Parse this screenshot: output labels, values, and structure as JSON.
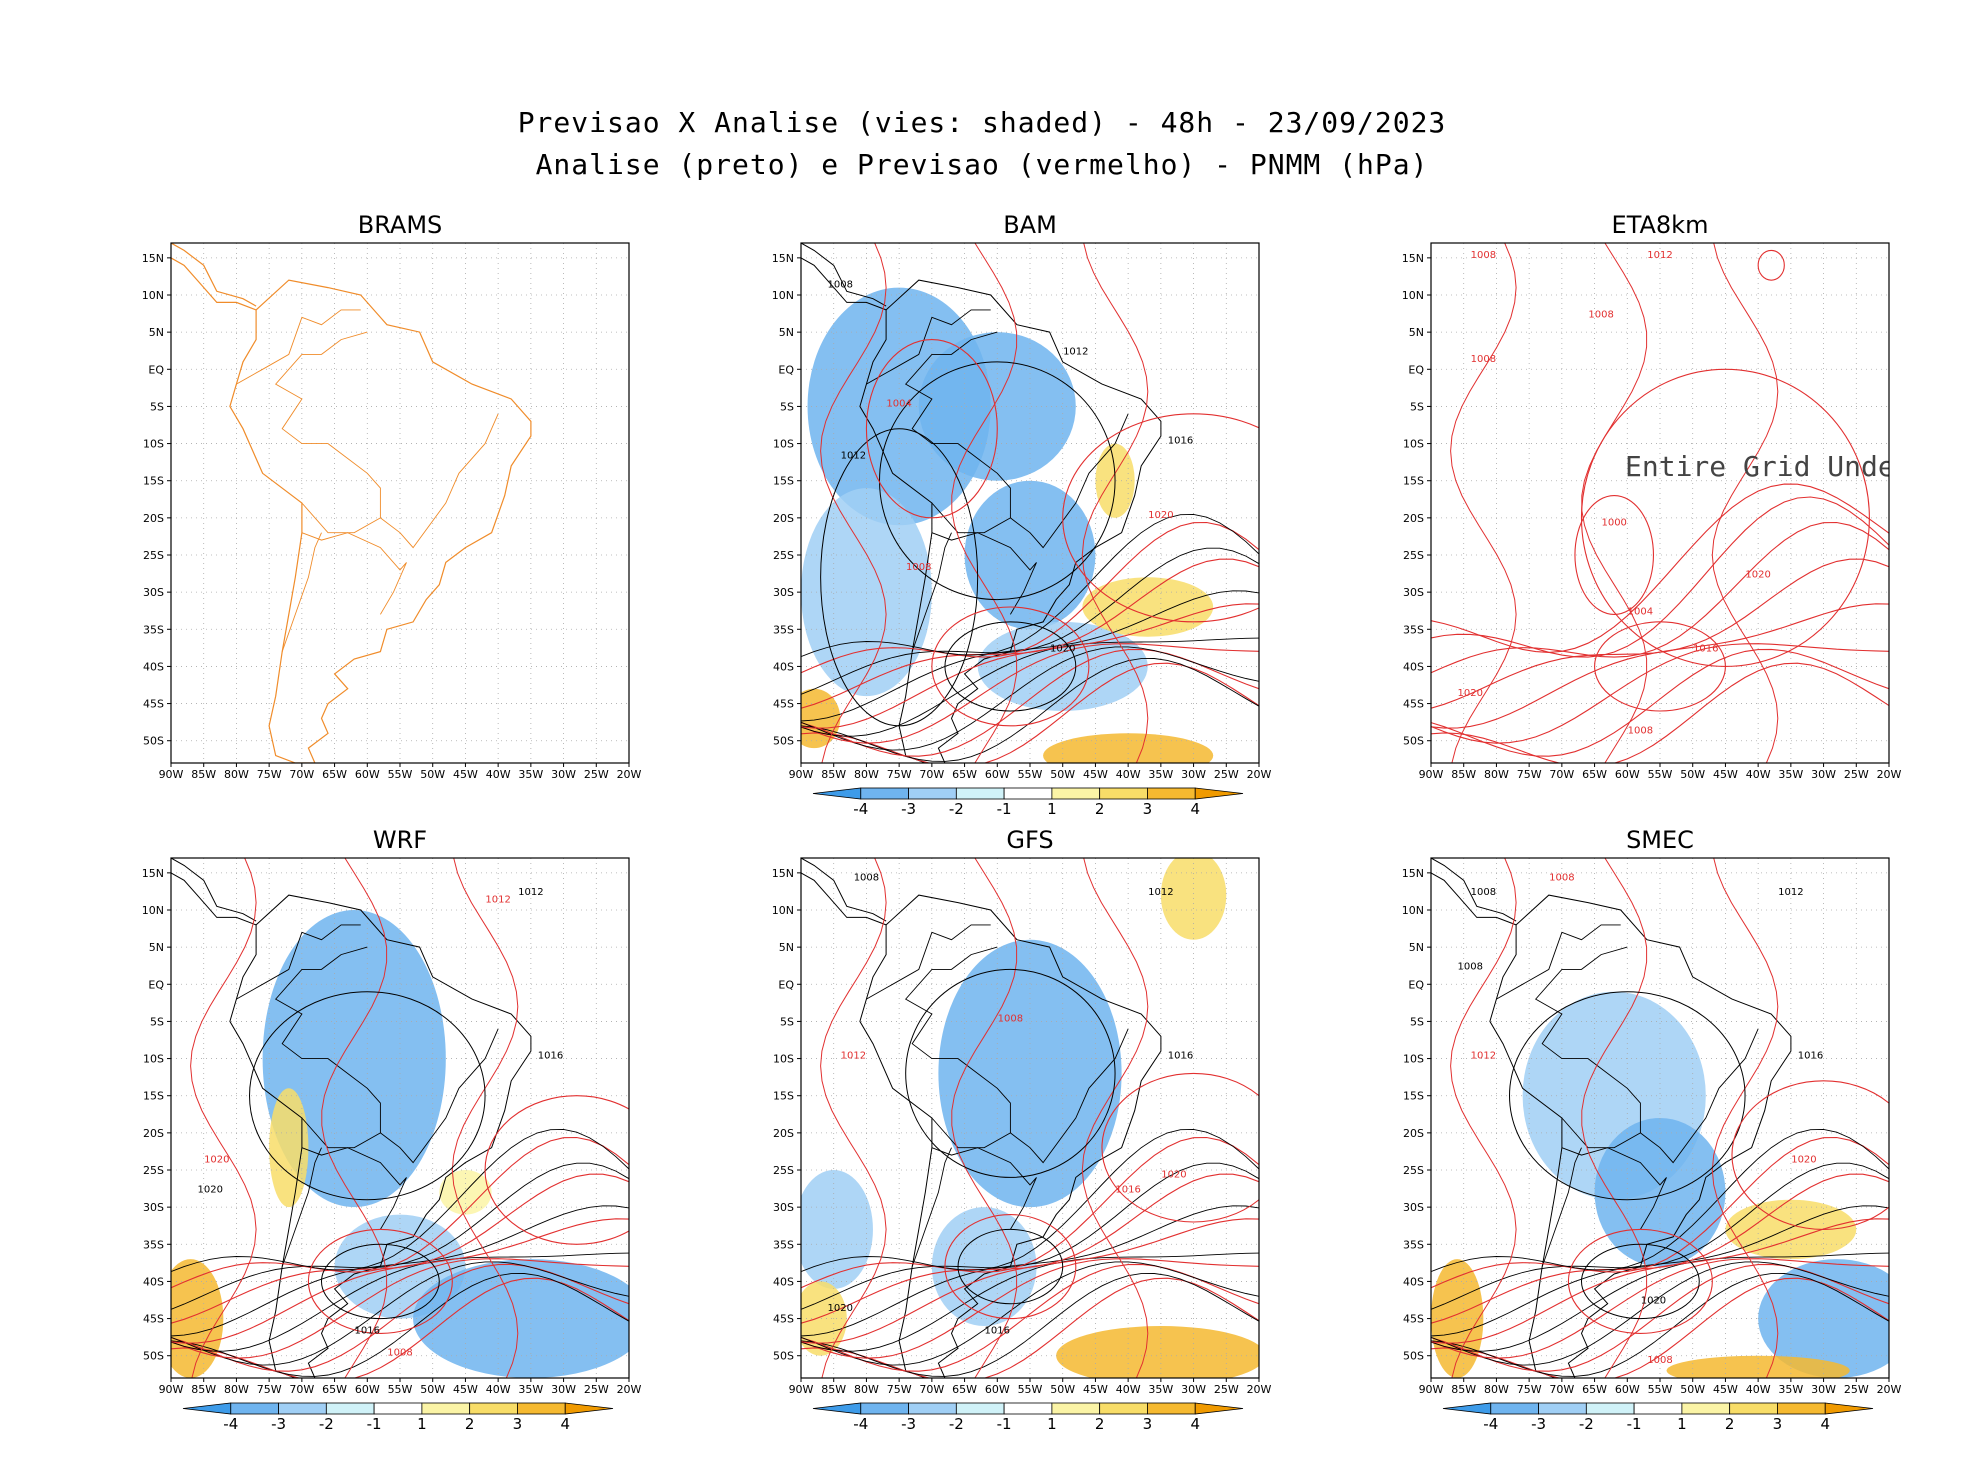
{
  "header": {
    "title_line1": "Previsao X Analise (vies: shaded) - 48h - 23/09/2023",
    "title_line2": "Analise (preto) e Previsao (vermelho) - PNMM (hPa)"
  },
  "axes": {
    "lon_labels": [
      "90W",
      "85W",
      "80W",
      "75W",
      "70W",
      "65W",
      "60W",
      "55W",
      "50W",
      "45W",
      "40W",
      "35W",
      "30W",
      "25W",
      "20W"
    ],
    "lat_labels": [
      "15N",
      "10N",
      "5N",
      "EQ",
      "5S",
      "10S",
      "15S",
      "20S",
      "25S",
      "30S",
      "35S",
      "40S",
      "45S",
      "50S"
    ],
    "lon_range": [
      -90,
      -20
    ],
    "lat_range": [
      -53,
      17
    ]
  },
  "colorbar": {
    "labels": [
      "-4",
      "-3",
      "-2",
      "-1",
      "1",
      "2",
      "3",
      "4"
    ],
    "colors": [
      "#3d9be9",
      "#6fb4ef",
      "#a0cff5",
      "#d0f2f8",
      "#ffffff",
      "#fbf4a6",
      "#f8dd68",
      "#f5b930",
      "#f09a00"
    ]
  },
  "colors": {
    "analysis": "#000000",
    "forecast": "#e23030",
    "coastline_brams": "#f08c2a"
  },
  "panels": [
    {
      "id": "brams",
      "title": "BRAMS",
      "has_colorbar": false,
      "undefined_text": "",
      "bias": [],
      "contours_black": [],
      "contours_red": [],
      "labels_black": [],
      "labels_red": []
    },
    {
      "id": "bam",
      "title": "BAM",
      "has_colorbar": true,
      "undefined_text": "",
      "bias": [
        {
          "lon": -75,
          "lat": -5,
          "rx": 14,
          "ry": 16,
          "v": -2
        },
        {
          "lon": -60,
          "lat": -5,
          "rx": 12,
          "ry": 10,
          "v": -2
        },
        {
          "lon": -55,
          "lat": -25,
          "rx": 10,
          "ry": 10,
          "v": -2
        },
        {
          "lon": -50,
          "lat": -40,
          "rx": 13,
          "ry": 6,
          "v": -1
        },
        {
          "lon": -80,
          "lat": -30,
          "rx": 10,
          "ry": 14,
          "v": -1
        },
        {
          "lon": -42,
          "lat": -15,
          "rx": 3,
          "ry": 5,
          "v": 2
        },
        {
          "lon": -37,
          "lat": -32,
          "rx": 10,
          "ry": 4,
          "v": 2
        },
        {
          "lon": -88,
          "lat": -47,
          "rx": 4,
          "ry": 4,
          "v": 3
        },
        {
          "lon": -40,
          "lat": -52,
          "rx": 13,
          "ry": 3,
          "v": 3
        }
      ],
      "contours_black": [
        {
          "lon": -58,
          "lat": -40,
          "rx": 10,
          "ry": 6
        },
        {
          "lon": -60,
          "lat": -15,
          "rx": 18,
          "ry": 16
        },
        {
          "lon": -75,
          "lat": -28,
          "rx": 12,
          "ry": 20
        }
      ],
      "contours_red": [
        {
          "lon": -58,
          "lat": -40,
          "rx": 12,
          "ry": 8
        },
        {
          "lon": -70,
          "lat": -8,
          "rx": 10,
          "ry": 12
        },
        {
          "lon": -30,
          "lat": -20,
          "rx": 20,
          "ry": 14
        }
      ],
      "labels_black": [
        {
          "lon": -84,
          "lat": 11,
          "t": "1008"
        },
        {
          "lon": -48,
          "lat": 2,
          "t": "1012"
        },
        {
          "lon": -32,
          "lat": -10,
          "t": "1016"
        },
        {
          "lon": -50,
          "lat": -38,
          "t": "1020"
        },
        {
          "lon": -82,
          "lat": -12,
          "t": "1012"
        }
      ],
      "labels_red": [
        {
          "lon": -35,
          "lat": -20,
          "t": "1020"
        },
        {
          "lon": -72,
          "lat": -27,
          "t": "1008"
        },
        {
          "lon": -75,
          "lat": -5,
          "t": "1004"
        }
      ]
    },
    {
      "id": "eta8km",
      "title": "ETA8km",
      "has_colorbar": false,
      "undefined_text": "Entire Grid Undefine",
      "bias": [],
      "contours_black": [],
      "contours_red": [
        {
          "lon": -62,
          "lat": -25,
          "rx": 6,
          "ry": 8
        },
        {
          "lon": -55,
          "lat": -40,
          "rx": 10,
          "ry": 6
        },
        {
          "lon": -38,
          "lat": 14,
          "rx": 2,
          "ry": 2
        },
        {
          "lon": -45,
          "lat": -20,
          "rx": 22,
          "ry": 20
        }
      ],
      "labels_black": [],
      "labels_red": [
        {
          "lon": -82,
          "lat": 15,
          "t": "1008"
        },
        {
          "lon": -55,
          "lat": 15,
          "t": "1012"
        },
        {
          "lon": -64,
          "lat": 7,
          "t": "1008"
        },
        {
          "lon": -82,
          "lat": 1,
          "t": "1008"
        },
        {
          "lon": -40,
          "lat": -28,
          "t": "1020"
        },
        {
          "lon": -62,
          "lat": -21,
          "t": "1000"
        },
        {
          "lon": -58,
          "lat": -33,
          "t": "1004"
        },
        {
          "lon": -48,
          "lat": -38,
          "t": "1016"
        },
        {
          "lon": -84,
          "lat": -44,
          "t": "1020"
        },
        {
          "lon": -58,
          "lat": -49,
          "t": "1008"
        }
      ]
    },
    {
      "id": "wrf",
      "title": "WRF",
      "has_colorbar": true,
      "undefined_text": "",
      "bias": [
        {
          "lon": -62,
          "lat": -10,
          "rx": 14,
          "ry": 20,
          "v": -2
        },
        {
          "lon": -55,
          "lat": -38,
          "rx": 10,
          "ry": 7,
          "v": -1
        },
        {
          "lon": -35,
          "lat": -45,
          "rx": 18,
          "ry": 8,
          "v": -2
        },
        {
          "lon": -87,
          "lat": -45,
          "rx": 5,
          "ry": 8,
          "v": 3
        },
        {
          "lon": -72,
          "lat": -22,
          "rx": 3,
          "ry": 8,
          "v": 2
        },
        {
          "lon": -45,
          "lat": -28,
          "rx": 4,
          "ry": 3,
          "v": 1
        }
      ],
      "contours_black": [
        {
          "lon": -58,
          "lat": -40,
          "rx": 9,
          "ry": 5
        },
        {
          "lon": -60,
          "lat": -15,
          "rx": 18,
          "ry": 14
        }
      ],
      "contours_red": [
        {
          "lon": -58,
          "lat": -40,
          "rx": 11,
          "ry": 7
        },
        {
          "lon": -28,
          "lat": -25,
          "rx": 14,
          "ry": 10
        }
      ],
      "labels_black": [
        {
          "lon": -35,
          "lat": 12,
          "t": "1012"
        },
        {
          "lon": -32,
          "lat": -10,
          "t": "1016"
        },
        {
          "lon": -84,
          "lat": -28,
          "t": "1020"
        },
        {
          "lon": -60,
          "lat": -47,
          "t": "1016"
        }
      ],
      "labels_red": [
        {
          "lon": -40,
          "lat": 11,
          "t": "1012"
        },
        {
          "lon": -83,
          "lat": -24,
          "t": "1020"
        },
        {
          "lon": -55,
          "lat": -50,
          "t": "1008"
        }
      ]
    },
    {
      "id": "gfs",
      "title": "GFS",
      "has_colorbar": true,
      "undefined_text": "",
      "bias": [
        {
          "lon": -55,
          "lat": -12,
          "rx": 14,
          "ry": 18,
          "v": -2
        },
        {
          "lon": -85,
          "lat": -33,
          "rx": 6,
          "ry": 8,
          "v": -1
        },
        {
          "lon": -62,
          "lat": -38,
          "rx": 8,
          "ry": 8,
          "v": -1
        },
        {
          "lon": -30,
          "lat": 12,
          "rx": 5,
          "ry": 6,
          "v": 2
        },
        {
          "lon": -35,
          "lat": -50,
          "rx": 16,
          "ry": 4,
          "v": 3
        },
        {
          "lon": -87,
          "lat": -45,
          "rx": 4,
          "ry": 5,
          "v": 2
        }
      ],
      "contours_black": [
        {
          "lon": -58,
          "lat": -38,
          "rx": 8,
          "ry": 5
        },
        {
          "lon": -58,
          "lat": -12,
          "rx": 16,
          "ry": 14
        }
      ],
      "contours_red": [
        {
          "lon": -58,
          "lat": -38,
          "rx": 10,
          "ry": 7
        },
        {
          "lon": -30,
          "lat": -22,
          "rx": 14,
          "ry": 10
        }
      ],
      "labels_black": [
        {
          "lon": -80,
          "lat": 14,
          "t": "1008"
        },
        {
          "lon": -35,
          "lat": 12,
          "t": "1012"
        },
        {
          "lon": -32,
          "lat": -10,
          "t": "1016"
        },
        {
          "lon": -60,
          "lat": -47,
          "t": "1016"
        },
        {
          "lon": -84,
          "lat": -44,
          "t": "1020"
        }
      ],
      "labels_red": [
        {
          "lon": -58,
          "lat": -5,
          "t": "1008"
        },
        {
          "lon": -82,
          "lat": -10,
          "t": "1012"
        },
        {
          "lon": -33,
          "lat": -26,
          "t": "1020"
        },
        {
          "lon": -40,
          "lat": -28,
          "t": "1016"
        }
      ]
    },
    {
      "id": "smec",
      "title": "SMEC",
      "has_colorbar": true,
      "undefined_text": "",
      "bias": [
        {
          "lon": -62,
          "lat": -15,
          "rx": 14,
          "ry": 14,
          "v": -1
        },
        {
          "lon": -55,
          "lat": -28,
          "rx": 10,
          "ry": 10,
          "v": -2
        },
        {
          "lon": -28,
          "lat": -45,
          "rx": 12,
          "ry": 8,
          "v": -2
        },
        {
          "lon": -86,
          "lat": -45,
          "rx": 4,
          "ry": 8,
          "v": 3
        },
        {
          "lon": -40,
          "lat": -52,
          "rx": 14,
          "ry": 2,
          "v": 3
        },
        {
          "lon": -35,
          "lat": -33,
          "rx": 10,
          "ry": 4,
          "v": 2
        }
      ],
      "contours_black": [
        {
          "lon": -58,
          "lat": -40,
          "rx": 9,
          "ry": 5
        },
        {
          "lon": -60,
          "lat": -15,
          "rx": 18,
          "ry": 14
        }
      ],
      "contours_red": [
        {
          "lon": -58,
          "lat": -40,
          "rx": 11,
          "ry": 7
        },
        {
          "lon": -30,
          "lat": -23,
          "rx": 14,
          "ry": 10
        }
      ],
      "labels_black": [
        {
          "lon": -82,
          "lat": 12,
          "t": "1008"
        },
        {
          "lon": -84,
          "lat": 2,
          "t": "1008"
        },
        {
          "lon": -35,
          "lat": 12,
          "t": "1012"
        },
        {
          "lon": -32,
          "lat": -10,
          "t": "1016"
        },
        {
          "lon": -56,
          "lat": -43,
          "t": "1020"
        }
      ],
      "labels_red": [
        {
          "lon": -70,
          "lat": 14,
          "t": "1008"
        },
        {
          "lon": -82,
          "lat": -10,
          "t": "1012"
        },
        {
          "lon": -33,
          "lat": -24,
          "t": "1020"
        },
        {
          "lon": -55,
          "lat": -51,
          "t": "1008"
        }
      ]
    }
  ]
}
